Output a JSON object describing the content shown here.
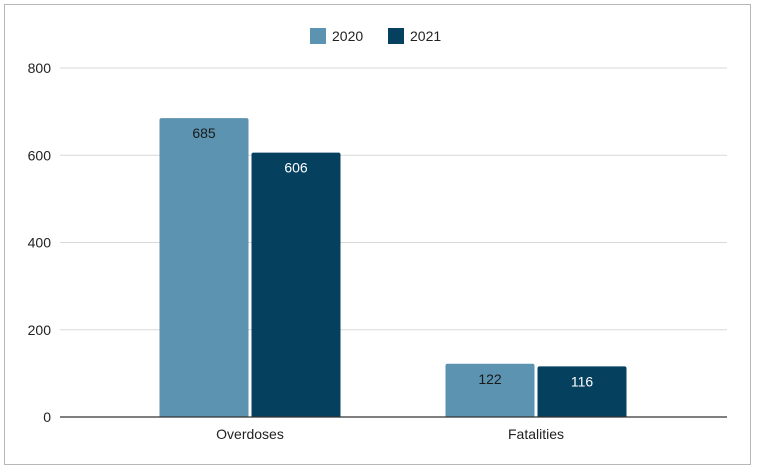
{
  "chart_data": {
    "type": "bar",
    "title": "",
    "xlabel": "",
    "ylabel": "",
    "categories": [
      "Overdoses",
      "Fatalities"
    ],
    "series": [
      {
        "name": "2020",
        "values": [
          685,
          122
        ],
        "color": "#5b93b1",
        "label_color": "#1a1a1a"
      },
      {
        "name": "2021",
        "values": [
          606,
          116
        ],
        "color": "#05415f",
        "label_color": "#ffffff"
      }
    ],
    "ylim": [
      0,
      800
    ],
    "yticks": [
      0,
      200,
      400,
      600,
      800
    ],
    "grid": true,
    "legend": "top-center",
    "axis_color": "#333333",
    "grid_color": "#d9d9d9"
  }
}
